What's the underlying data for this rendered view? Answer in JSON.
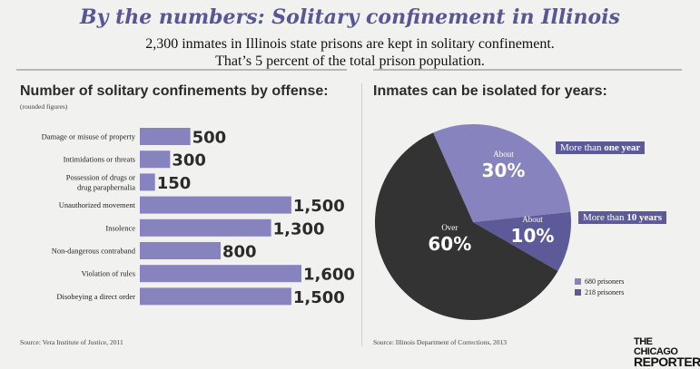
{
  "title": "By the numbers: Solitary confinement in Illinois",
  "subtitle_line1": "2,300 inmates in Illinois state prisons are kept in solitary confinement.",
  "subtitle_line2": "That’s 5 percent of the total prison population.",
  "left_heading": "Number of solitary confinements by offense:",
  "left_note": "(rounded figures)",
  "left_source": "Source: Vera Institute of Justice, 2011",
  "right_heading": "Inmates can be isolated for years:",
  "right_source": "Source: Illinois Department of Corrections, 2013",
  "logo_line1": "THE CHICAGO",
  "logo_line2": "REPORTER",
  "colors": {
    "title": "#585694",
    "bar": "#8683bf",
    "pie_dark": "#333333",
    "pie_light": "#8683bf",
    "pie_mid": "#5d5a9a",
    "callout": "#5d5a9a"
  },
  "chart_data": [
    {
      "type": "bar",
      "orientation": "horizontal",
      "title": "Number of solitary confinements by offense:",
      "categories": [
        [
          "Damage or misuse of property"
        ],
        [
          "Intimidations or threats"
        ],
        [
          "Possession of drugs or",
          "drug paraphernalia"
        ],
        [
          "Unauthorized movement"
        ],
        [
          "Insolence"
        ],
        [
          "Non-dangerous contraband"
        ],
        [
          "Violation of rules"
        ],
        [
          "Disobeying a direct order"
        ]
      ],
      "values": [
        500,
        300,
        150,
        1500,
        1300,
        800,
        1600,
        1500
      ],
      "value_labels": [
        "500",
        "300",
        "150",
        "1,500",
        "1,300",
        "800",
        "1,600",
        "1,500"
      ],
      "xlim": [
        0,
        1600
      ],
      "grid": false
    },
    {
      "type": "pie",
      "title": "Inmates can be isolated for years:",
      "slices": [
        {
          "value": 30,
          "label_small": "About",
          "label_big": "30%",
          "callout_pre": "More than ",
          "callout_bold": "one year",
          "color": "#8683bf"
        },
        {
          "value": 10,
          "label_small": "About",
          "label_big": "10%",
          "callout_pre": "More than ",
          "callout_bold": "10 years",
          "color": "#5d5a9a"
        },
        {
          "value": 60,
          "label_small": "Over",
          "label_big": "60%",
          "color": "#333333"
        }
      ],
      "legend": [
        {
          "label": "680 prisoners",
          "color": "#8683bf"
        },
        {
          "label": "218 prisoners",
          "color": "#5d5a9a"
        }
      ]
    }
  ]
}
